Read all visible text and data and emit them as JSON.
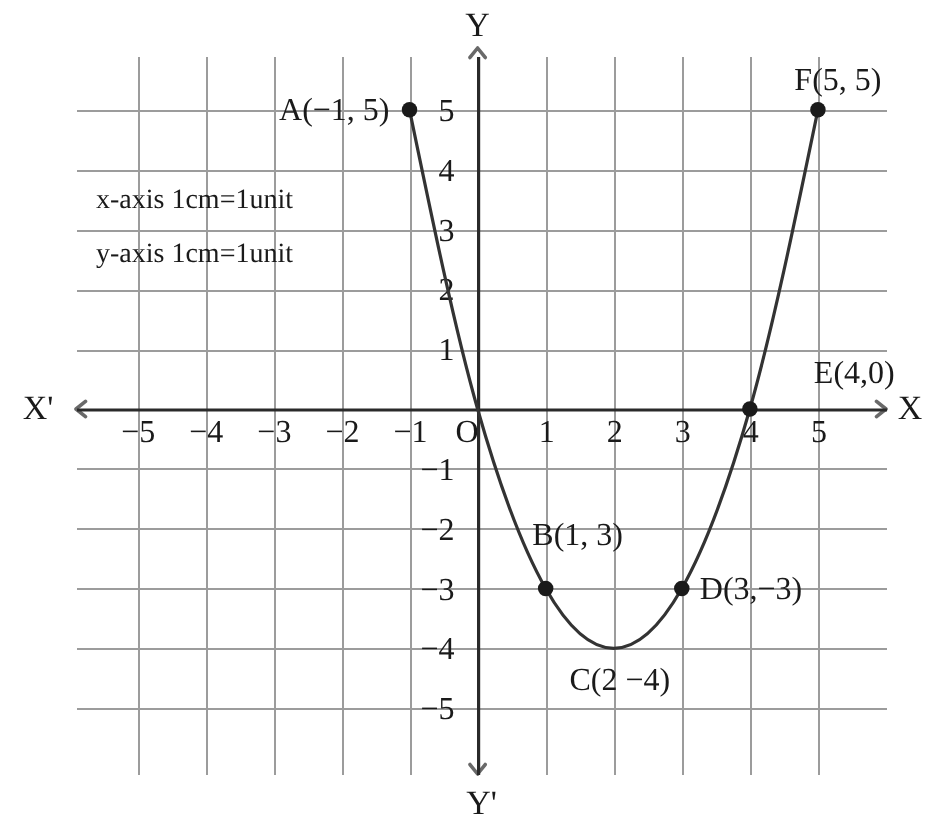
{
  "chart_data": {
    "type": "line",
    "x": [
      -1,
      0,
      1,
      2,
      3,
      4,
      5
    ],
    "series": [
      {
        "type": "line",
        "color": "#333333",
        "values": [
          5,
          0,
          -3,
          -4,
          -3,
          0,
          5
        ]
      },
      {
        "type": "scatter",
        "color": "#1a1a1a",
        "marker": "circle",
        "x": [
          -1,
          1,
          3,
          4,
          5
        ],
        "values": [
          5,
          -3,
          -3,
          0,
          5
        ]
      }
    ],
    "xlim": [
      -5.9,
      6
    ],
    "ylim": [
      -6.1,
      5.9
    ],
    "xticks": [
      -5,
      -4,
      -3,
      -2,
      -1,
      {
        "value": 0,
        "label": "O"
      },
      1,
      2,
      3,
      4,
      5
    ],
    "yticks": [
      -5,
      -4,
      -3,
      -2,
      -1,
      1,
      2,
      3,
      4,
      5
    ],
    "xlabel": "X",
    "ylabel": "Y",
    "annotations": [
      "X'",
      "Y'",
      "x-axis 1cm=1unit",
      "y-axis 1cm=1unit",
      {
        "text": "A(−1, 5)",
        "x": -1,
        "y": 5
      },
      {
        "text": "B(1, 3)",
        "x": 1,
        "y": -3
      },
      {
        "text": "C(2 −4)",
        "x": 2,
        "y": -4
      },
      {
        "text": "D(3,−3)",
        "x": 3,
        "y": -3
      },
      {
        "text": "E(4,0)",
        "x": 4,
        "y": 0
      },
      {
        "text": "F(5, 5)",
        "x": 5,
        "y": 5
      }
    ],
    "grid": true,
    "line_style": "solid"
  }
}
